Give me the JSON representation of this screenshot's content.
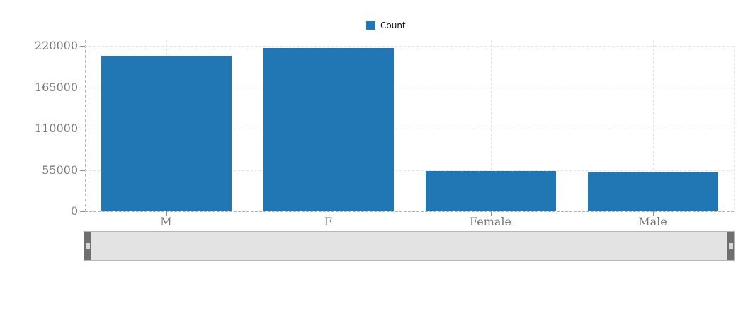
{
  "chart_data": {
    "type": "bar",
    "title": "",
    "categories": [
      "M",
      "F",
      "Female",
      "Male"
    ],
    "values": [
      207000,
      217000,
      54000,
      51500
    ],
    "series_name": "Count",
    "xlabel": "",
    "ylabel": "",
    "ylim": [
      0,
      220000
    ],
    "yticks": [
      0,
      55000,
      110000,
      165000,
      220000
    ],
    "ytick_labels": [
      "0",
      "55000",
      "110000",
      "165000",
      "220000"
    ],
    "grid": true,
    "grid_style": "dashed",
    "legend": {
      "label": "Count",
      "position": "top-center"
    }
  },
  "colors": {
    "bar": "#2077b4",
    "legend_swatch": "#2077b4",
    "grid": "#e3e3e3",
    "axis": "#b3b3b3",
    "tick": "#8d8d8d",
    "tick_label": "#757575",
    "legend_text": "#111111",
    "slider_track": "#e3e3e3",
    "slider_border": "#b5b5b5",
    "slider_handle": "#6f6f6f",
    "slider_grip": "#d6d6d6"
  },
  "slider": {
    "role": "horizontal-range-selector",
    "selection": "full"
  }
}
